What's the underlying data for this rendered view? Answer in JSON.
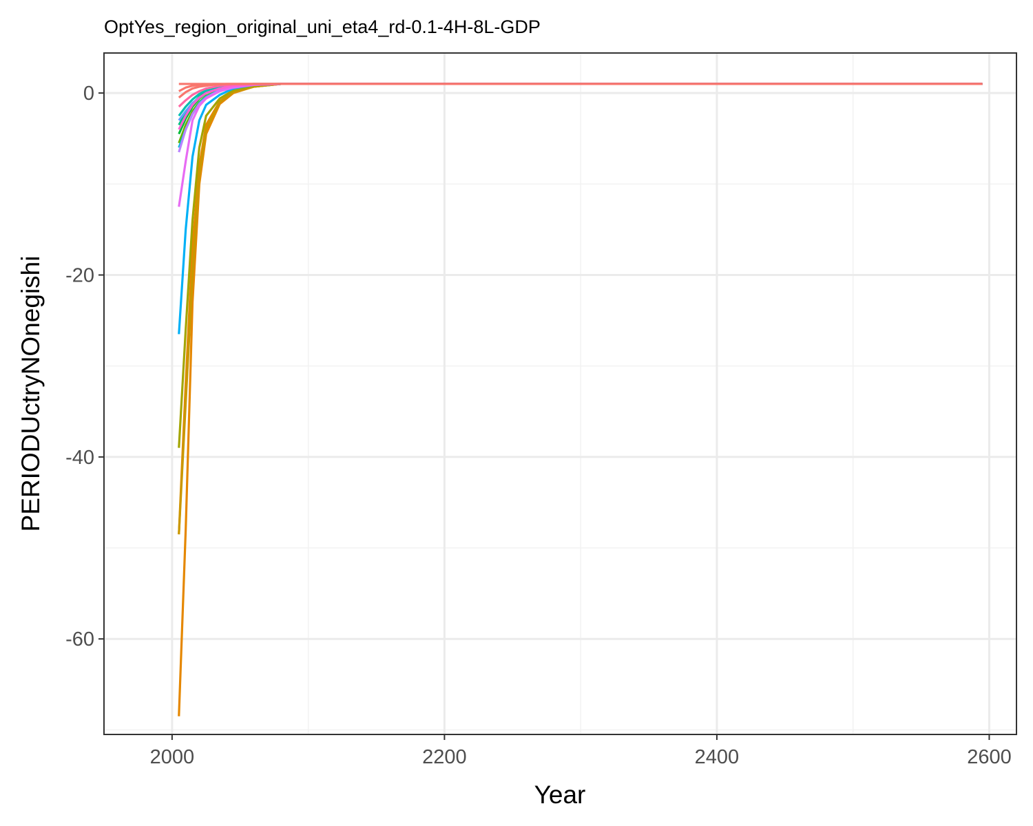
{
  "chart_data": {
    "type": "line",
    "title": "OptYes_region_original_uni_eta4_rd-0.1-4H-8L-GDP",
    "xlabel": "Year",
    "ylabel": "PERIODUctryNOnegishi",
    "xlim": [
      1950,
      2620
    ],
    "ylim": [
      -70.5,
      4.4
    ],
    "x_ticks": [
      2000,
      2200,
      2400,
      2600
    ],
    "x_tick_labels": [
      "2000",
      "2200",
      "2400",
      "2600"
    ],
    "y_ticks": [
      0,
      -20,
      -40,
      -60
    ],
    "y_tick_labels": [
      "0",
      "-20",
      "-40",
      "-60"
    ],
    "x_minor_ticks": [
      2100,
      2300,
      2500
    ],
    "y_minor_ticks": [
      -10,
      -30,
      -50,
      -70
    ],
    "grid": true,
    "legend": "none",
    "series": [
      {
        "color": "#E58700",
        "x": [
          2005,
          2010,
          2015,
          2020,
          2025,
          2035,
          2045,
          2060,
          2080,
          2100,
          2595
        ],
        "y": [
          -68.5,
          -48,
          -23,
          -10,
          -4.5,
          -1.2,
          0,
          0.7,
          1.0,
          1.0,
          1.0
        ]
      },
      {
        "color": "#E58700",
        "x": [
          2005,
          2010,
          2015,
          2020,
          2025,
          2035,
          2045,
          2060,
          2080,
          2100,
          2595
        ],
        "y": [
          -48.5,
          -32,
          -17,
          -8,
          -3.5,
          -0.9,
          0.1,
          0.7,
          1.0,
          1.0,
          1.0
        ]
      },
      {
        "color": "#C99800",
        "x": [
          2005,
          2010,
          2015,
          2020,
          2025,
          2035,
          2045,
          2060,
          2080,
          2100,
          2595
        ],
        "y": [
          -48.5,
          -34,
          -20,
          -9,
          -4,
          -1,
          0.1,
          0.7,
          1.0,
          1.0,
          1.0
        ]
      },
      {
        "color": "#A3A500",
        "x": [
          2005,
          2010,
          2015,
          2020,
          2025,
          2035,
          2045,
          2060,
          2080,
          2100,
          2595
        ],
        "y": [
          -39,
          -26,
          -14,
          -6,
          -2.5,
          -0.6,
          0.3,
          0.8,
          1.0,
          1.0,
          1.0
        ]
      },
      {
        "color": "#6BB100",
        "x": [
          2005,
          2010,
          2015,
          2020,
          2025,
          2035,
          2045,
          2060,
          2080,
          2100,
          2595
        ],
        "y": [
          -5.5,
          -3.5,
          -2,
          -1,
          -0.3,
          0.3,
          0.7,
          0.9,
          1.0,
          1.0,
          1.0
        ]
      },
      {
        "color": "#00BA38",
        "x": [
          2005,
          2010,
          2015,
          2020,
          2025,
          2035,
          2045,
          2060,
          2080,
          2100,
          2595
        ],
        "y": [
          -4.5,
          -2.8,
          -1.5,
          -0.6,
          0,
          0.5,
          0.8,
          0.95,
          1.0,
          1.0,
          1.0
        ]
      },
      {
        "color": "#00BF7D",
        "x": [
          2005,
          2010,
          2015,
          2020,
          2025,
          2035,
          2045,
          2060,
          2080,
          2100,
          2595
        ],
        "y": [
          -3.5,
          -2.2,
          -1.2,
          -0.4,
          0.1,
          0.6,
          0.85,
          0.95,
          1.0,
          1.0,
          1.0
        ]
      },
      {
        "color": "#00C0AF",
        "x": [
          2005,
          2010,
          2015,
          2020,
          2025,
          2035,
          2045,
          2060,
          2080,
          2100,
          2595
        ],
        "y": [
          -2.5,
          -1.5,
          -0.7,
          -0.1,
          0.3,
          0.7,
          0.9,
          1.0,
          1.0,
          1.0,
          1.0
        ]
      },
      {
        "color": "#00BCD8",
        "x": [
          2005,
          2010,
          2015,
          2020,
          2025,
          2035,
          2045,
          2060,
          2080,
          2100,
          2595
        ],
        "y": [
          -6,
          -4,
          -2.3,
          -1.1,
          -0.4,
          0.3,
          0.7,
          0.9,
          1.0,
          1.0,
          1.0
        ]
      },
      {
        "color": "#00B0F6",
        "x": [
          2005,
          2010,
          2015,
          2020,
          2025,
          2035,
          2045,
          2060,
          2080,
          2100,
          2595
        ],
        "y": [
          -26.5,
          -15,
          -7,
          -3,
          -1.3,
          -0.2,
          0.5,
          0.9,
          1.0,
          1.0,
          1.0
        ]
      },
      {
        "color": "#619CFF",
        "x": [
          2005,
          2010,
          2015,
          2020,
          2025,
          2035,
          2045,
          2060,
          2080,
          2100,
          2595
        ],
        "y": [
          -3,
          -2,
          -1.1,
          -0.5,
          0,
          0.5,
          0.8,
          0.95,
          1.0,
          1.0,
          1.0
        ]
      },
      {
        "color": "#B983FF",
        "x": [
          2005,
          2010,
          2015,
          2020,
          2025,
          2035,
          2045,
          2060,
          2080,
          2100,
          2595
        ],
        "y": [
          -6.5,
          -4,
          -2.3,
          -1.2,
          -0.5,
          0.3,
          0.7,
          0.9,
          1.0,
          1.0,
          1.0
        ]
      },
      {
        "color": "#E76BF3",
        "x": [
          2005,
          2010,
          2015,
          2020,
          2025,
          2035,
          2045,
          2060,
          2080,
          2100,
          2595
        ],
        "y": [
          -12.5,
          -7.5,
          -3,
          -1.4,
          -0.6,
          0.2,
          0.6,
          0.9,
          1.0,
          1.0,
          1.0
        ]
      },
      {
        "color": "#FD61D1",
        "x": [
          2005,
          2010,
          2015,
          2020,
          2025,
          2035,
          2045,
          2060,
          2080,
          2100,
          2595
        ],
        "y": [
          -4,
          -2.5,
          -1.3,
          -0.5,
          0,
          0.5,
          0.8,
          0.95,
          1.0,
          1.0,
          1.0
        ]
      },
      {
        "color": "#FF67A4",
        "x": [
          2005,
          2010,
          2015,
          2020,
          2025,
          2035,
          2045,
          2060,
          2080,
          2100,
          2595
        ],
        "y": [
          -1.5,
          -0.8,
          -0.2,
          0.2,
          0.5,
          0.8,
          0.95,
          1.0,
          1.0,
          1.0,
          1.0
        ]
      },
      {
        "color": "#F8766D",
        "x": [
          2005,
          2595
        ],
        "y": [
          1.0,
          1.0
        ]
      },
      {
        "color": "#F8766D",
        "x": [
          2005,
          2010,
          2015,
          2020,
          2030,
          2040,
          2595
        ],
        "y": [
          -0.5,
          0.1,
          0.5,
          0.7,
          0.9,
          1.0,
          1.0
        ]
      },
      {
        "color": "#F8766D",
        "x": [
          2005,
          2010,
          2015,
          2020,
          2030,
          2040,
          2595
        ],
        "y": [
          0.2,
          0.6,
          0.8,
          0.9,
          1.0,
          1.0,
          1.0
        ]
      }
    ]
  }
}
